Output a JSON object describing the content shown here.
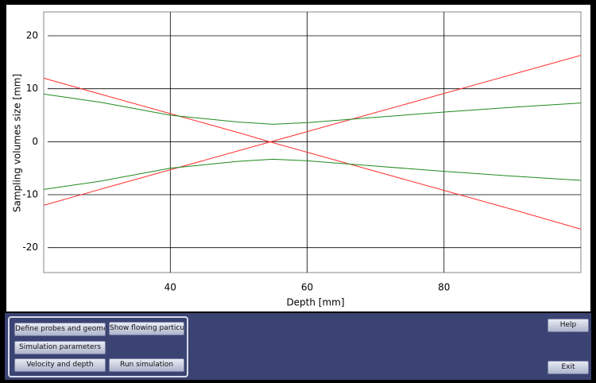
{
  "chart_data": {
    "type": "line",
    "x_label": "Depth [mm]",
    "y_label": "Sampling volumes size [mm]",
    "x": [
      21.5,
      30,
      40,
      50,
      55,
      60,
      70,
      80,
      90,
      100
    ],
    "series": [
      {
        "color": "#ff3030",
        "values": [
          12,
          8.9,
          5.3,
          1.7,
          -0.2,
          -2.0,
          -5.6,
          -9.2,
          -12.8,
          -16.5
        ]
      },
      {
        "color": "#ff3030",
        "values": [
          -12,
          -8.9,
          -5.3,
          -1.7,
          0.1,
          1.9,
          5.5,
          9.1,
          12.7,
          16.3
        ]
      },
      {
        "color": "#1f8a1f",
        "values": [
          9,
          7.4,
          5.0,
          3.7,
          3.3,
          3.6,
          4.6,
          5.6,
          6.5,
          7.3
        ]
      },
      {
        "color": "#1f8a1f",
        "values": [
          -9,
          -7.4,
          -5.0,
          -3.7,
          -3.3,
          -3.6,
          -4.6,
          -5.6,
          -6.5,
          -7.3
        ]
      }
    ],
    "xlim": [
      21.5,
      100
    ],
    "ylim": [
      -24.7,
      24.5
    ],
    "xticks": [
      40,
      60,
      80
    ],
    "yticks": [
      -20,
      -10,
      0,
      10,
      20
    ],
    "grid": true
  },
  "buttons": [
    "Define probes and geometry",
    "Show flowing particules",
    "Simulation parameters",
    "Velocity and depth",
    "Run simulation",
    "Help",
    "Exit"
  ]
}
